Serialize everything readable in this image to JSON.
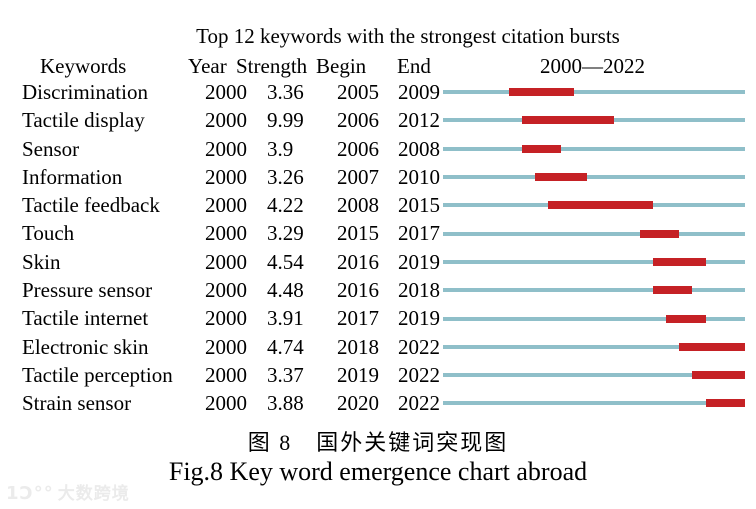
{
  "page": {
    "title": "Top 12 keywords with the strongest citation bursts",
    "header": {
      "keywords": "Keywords",
      "year": "Year",
      "strength": "Strength",
      "begin": "Begin",
      "end": "End",
      "range": "2000—2022"
    },
    "caption_zh": "图 8　国外关键词突现图",
    "caption_en": "Fig.8 Key word emergence chart abroad",
    "watermark": {
      "logo": "1Ɔ°°",
      "text": "大数跨境"
    }
  },
  "colors": {
    "track": "#8fbfc9",
    "burst": "#c52125",
    "watermark": "#ebebeb"
  },
  "chart_data": {
    "type": "table",
    "title": "Top 12 keywords with the strongest citation bursts",
    "columns": [
      "Keywords",
      "Year",
      "Strength",
      "Begin",
      "End",
      "2000—2022"
    ],
    "timeline_range": [
      2000,
      2022
    ],
    "legend": "teal track = full 2000-2022 span, red segment = citation burst period",
    "rows": [
      {
        "keyword": "Discrimination",
        "year": "2000",
        "strength": "3.36",
        "begin": 2005,
        "end": 2009
      },
      {
        "keyword": "Tactile display",
        "year": "2000",
        "strength": "9.99",
        "begin": 2006,
        "end": 2012
      },
      {
        "keyword": "Sensor",
        "year": "2000",
        "strength": "3.9",
        "begin": 2006,
        "end": 2008
      },
      {
        "keyword": "Information",
        "year": "2000",
        "strength": "3.26",
        "begin": 2007,
        "end": 2010
      },
      {
        "keyword": "Tactile feedback",
        "year": "2000",
        "strength": "4.22",
        "begin": 2008,
        "end": 2015
      },
      {
        "keyword": "Touch",
        "year": "2000",
        "strength": "3.29",
        "begin": 2015,
        "end": 2017
      },
      {
        "keyword": "Skin",
        "year": "2000",
        "strength": "4.54",
        "begin": 2016,
        "end": 2019
      },
      {
        "keyword": "Pressure sensor",
        "year": "2000",
        "strength": "4.48",
        "begin": 2016,
        "end": 2018
      },
      {
        "keyword": "Tactile internet",
        "year": "2000",
        "strength": "3.91",
        "begin": 2017,
        "end": 2019
      },
      {
        "keyword": "Electronic skin",
        "year": "2000",
        "strength": "4.74",
        "begin": 2018,
        "end": 2022
      },
      {
        "keyword": "Tactile perception",
        "year": "2000",
        "strength": "3.37",
        "begin": 2019,
        "end": 2022
      },
      {
        "keyword": "Strain sensor",
        "year": "2000",
        "strength": "3.88",
        "begin": 2020,
        "end": 2022
      }
    ]
  }
}
